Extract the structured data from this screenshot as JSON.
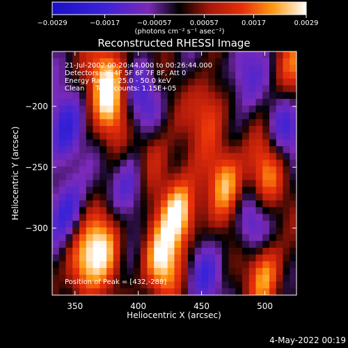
{
  "chart_data": {
    "type": "heatmap",
    "title": "Reconstructed RHESSI Image",
    "xlabel": "Heliocentric X (arcsec)",
    "ylabel": "Heliocentric Y (arcsec)",
    "xlim": [
      332,
      525
    ],
    "ylim": [
      -355,
      -155
    ],
    "x_ticks": [
      350,
      400,
      450,
      500
    ],
    "x_tick_labels": [
      "350",
      "400",
      "450",
      "500"
    ],
    "y_ticks": [
      -200,
      -250,
      -300
    ],
    "y_tick_labels": [
      "−200",
      "−250",
      "−300"
    ],
    "colorbar": {
      "range": [
        -0.0029,
        0.0029
      ],
      "ticks": [
        -0.0029,
        -0.0017,
        -0.00057,
        0.00057,
        0.0017,
        0.0029
      ],
      "tick_labels": [
        "−0.0029",
        "−0.0017",
        "−0.00057",
        "0.00057",
        "0.0017",
        "0.0029"
      ],
      "units": "(photons cm⁻² s⁻¹ asec⁻²)",
      "stops": [
        {
          "f": 0.0,
          "color": "#1a10c8"
        },
        {
          "f": 0.2,
          "color": "#3a22d8"
        },
        {
          "f": 0.38,
          "color": "#7a2ab8"
        },
        {
          "f": 0.5,
          "color": "#000000"
        },
        {
          "f": 0.62,
          "color": "#a8180a"
        },
        {
          "f": 0.75,
          "color": "#e8300a"
        },
        {
          "f": 0.87,
          "color": "#ff9a10"
        },
        {
          "f": 1.0,
          "color": "#ffffff"
        }
      ]
    },
    "annotations": [
      "21-Jul-2002 00:20:44.000 to 00:26:44.000",
      "Detectors: 3F 4F 5F 6F 7F 8F, Att 0",
      "Energy Range: 25.0 - 50.0 keV",
      "Clean     Total counts: 1.15E+05"
    ],
    "peak_label": "Position of Peak = [432,-288]",
    "peak": [
      432,
      -288
    ],
    "sources": [
      {
        "x": 432,
        "y": -288,
        "amp": 1.0
      },
      {
        "x": 418,
        "y": -330,
        "amp": 0.8
      },
      {
        "x": 372,
        "y": -312,
        "amp": 0.75
      },
      {
        "x": 355,
        "y": -330,
        "amp": 0.65
      },
      {
        "x": 470,
        "y": -262,
        "amp": 0.7
      },
      {
        "x": 455,
        "y": -205,
        "amp": 0.55
      },
      {
        "x": 500,
        "y": -255,
        "amp": 0.6
      },
      {
        "x": 500,
        "y": -335,
        "amp": 0.7
      },
      {
        "x": 378,
        "y": -200,
        "amp": 0.6
      },
      {
        "x": 375,
        "y": -170,
        "amp": 0.55
      },
      {
        "x": 410,
        "y": -240,
        "amp": 0.45
      },
      {
        "x": 520,
        "y": -170,
        "amp": 0.5
      },
      {
        "x": 345,
        "y": -285,
        "amp": -0.6
      },
      {
        "x": 340,
        "y": -220,
        "amp": -0.55
      },
      {
        "x": 395,
        "y": -262,
        "amp": -0.5
      },
      {
        "x": 405,
        "y": -195,
        "amp": -0.45
      },
      {
        "x": 485,
        "y": -175,
        "amp": -0.5
      },
      {
        "x": 490,
        "y": -300,
        "amp": -0.5
      },
      {
        "x": 450,
        "y": -340,
        "amp": -0.4
      },
      {
        "x": 515,
        "y": -220,
        "amp": -0.45
      }
    ]
  },
  "footer": {
    "timestamp": "4-May-2022 00:19"
  }
}
